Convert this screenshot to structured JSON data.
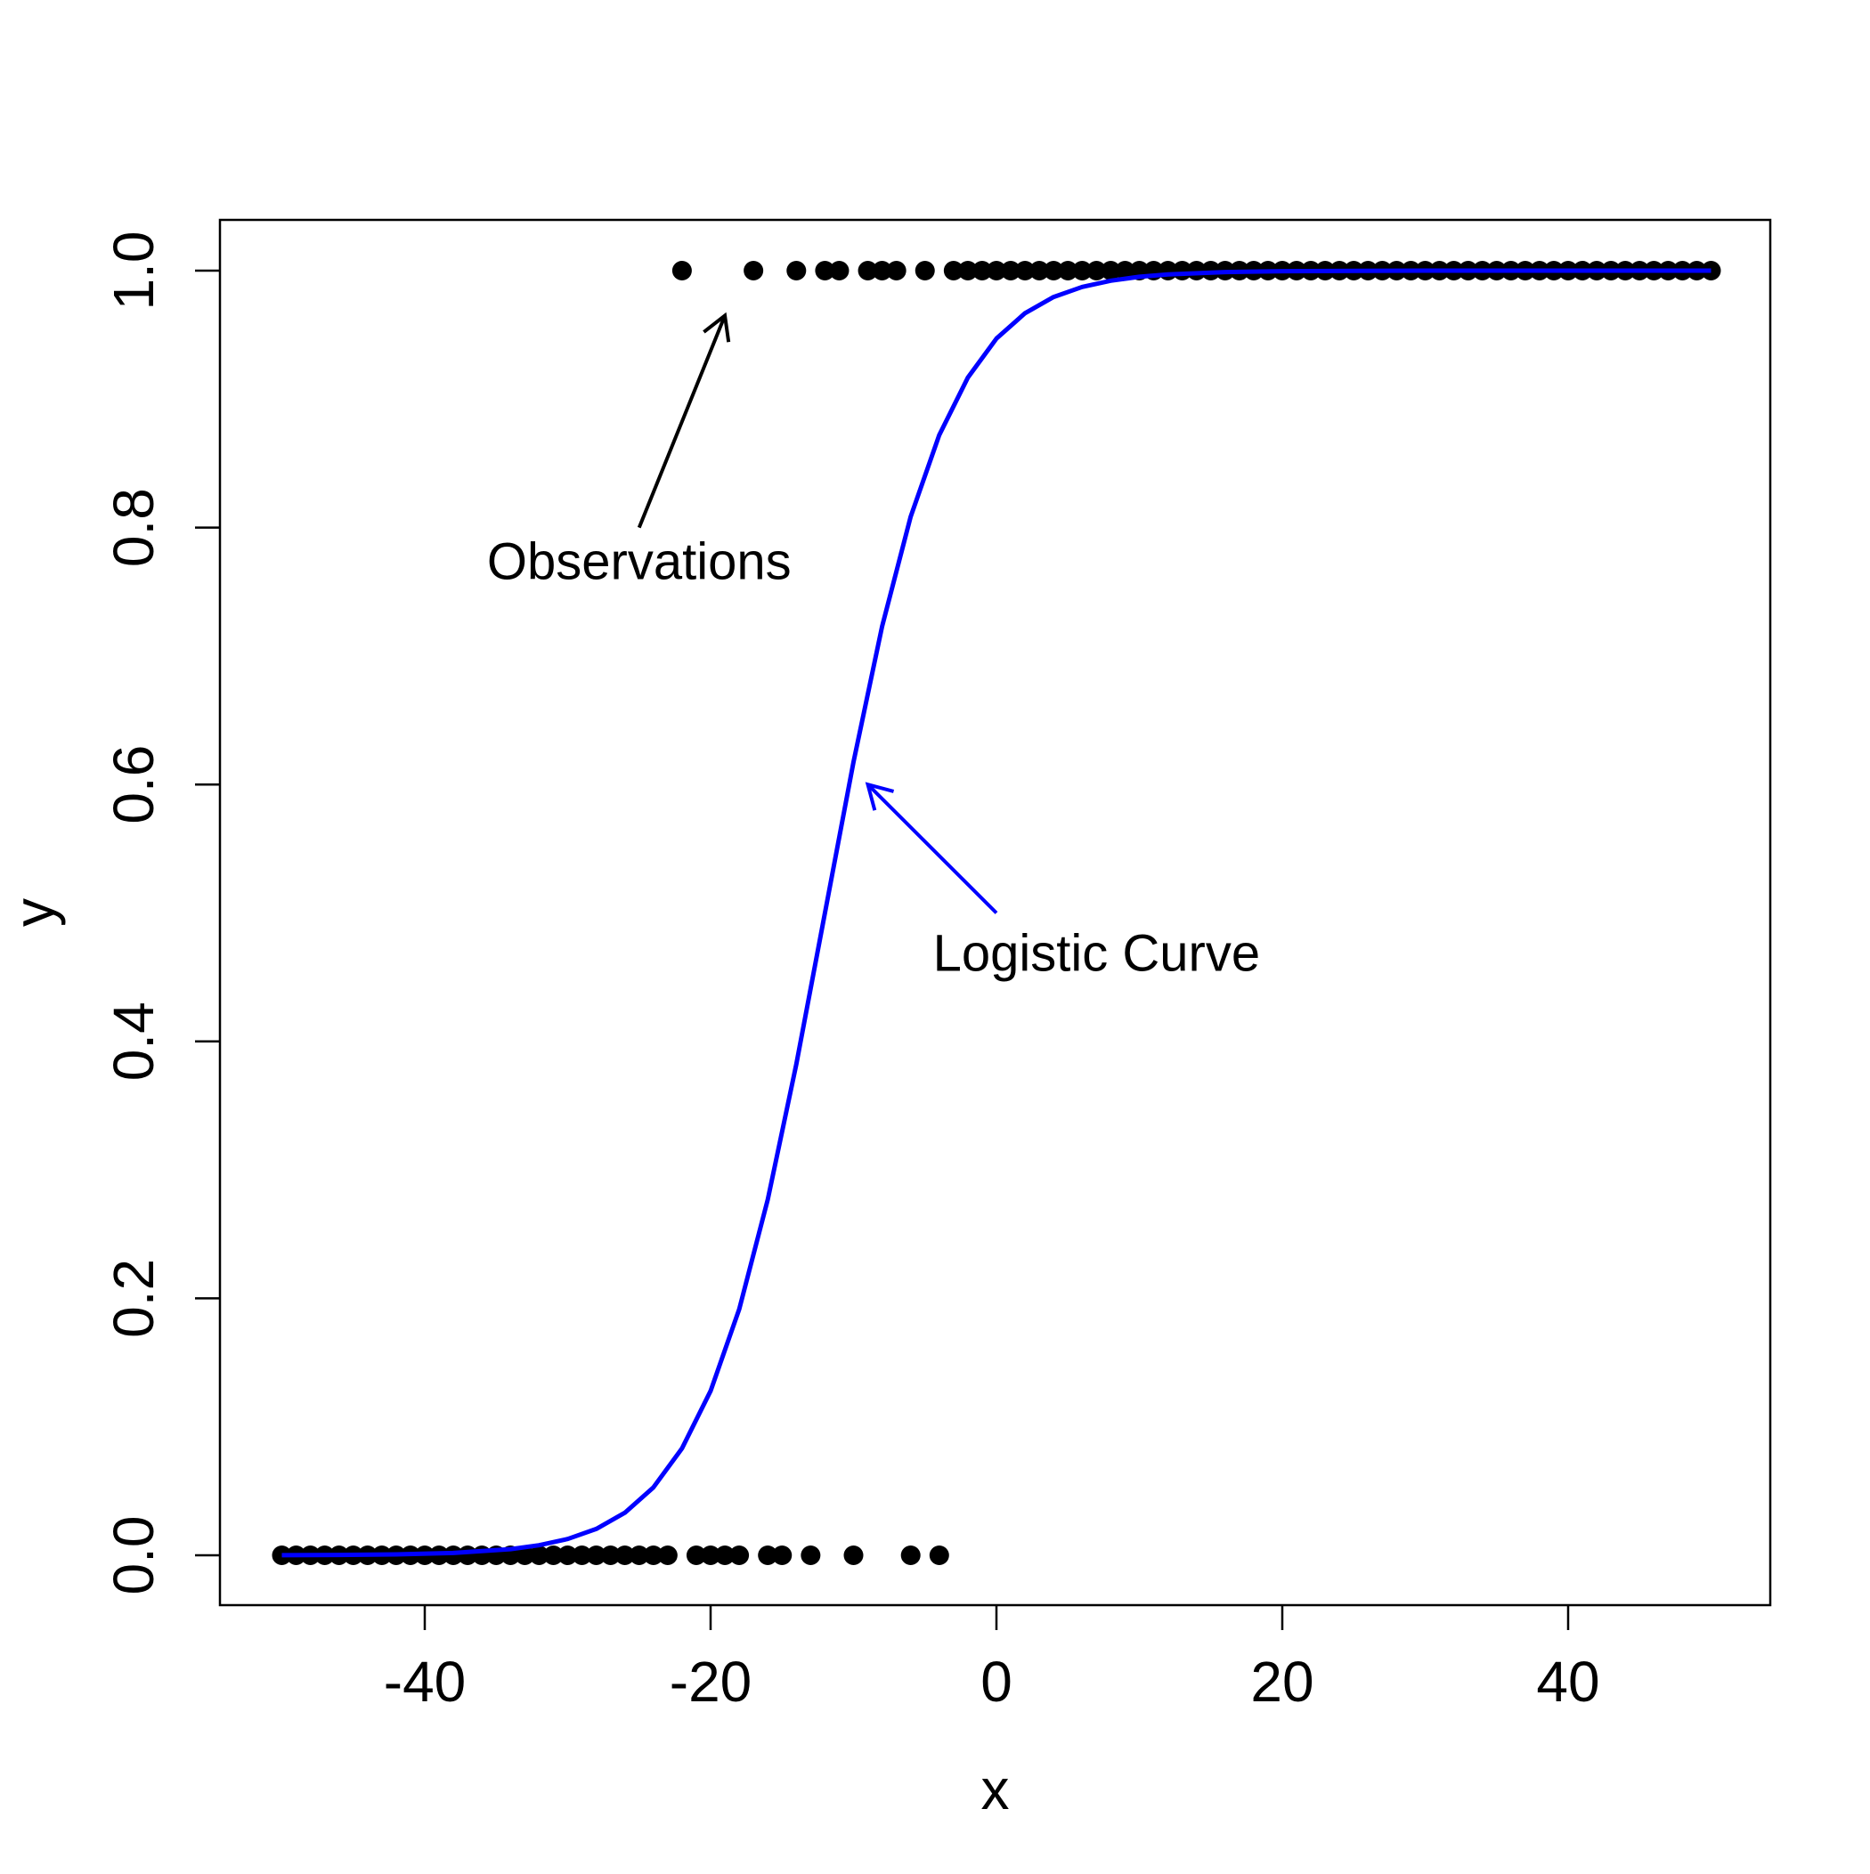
{
  "chart_data": {
    "type": "scatter",
    "title": "",
    "xlabel": "x",
    "ylabel": "y",
    "xlim": [
      -50,
      50
    ],
    "ylim": [
      0,
      1
    ],
    "x_ticks": [
      -40,
      -20,
      0,
      20,
      40
    ],
    "x_tick_labels": [
      "-40",
      "-20",
      "0",
      "20",
      "40"
    ],
    "y_ticks": [
      0,
      0.2,
      0.4,
      0.6,
      0.8,
      1
    ],
    "y_tick_labels": [
      "0.0",
      "0.2",
      "0.4",
      "0.6",
      "0.8",
      "1.0"
    ],
    "grid": false,
    "legend": "none",
    "series": [
      {
        "kind": "points",
        "color": "#000000",
        "y0_x": [
          -50,
          -49,
          -48,
          -47,
          -46,
          -45,
          -44,
          -43,
          -42,
          -41,
          -40,
          -39,
          -38,
          -37,
          -36,
          -35,
          -34,
          -33,
          -32,
          -31,
          -30,
          -29,
          -28,
          -27,
          -26,
          -25,
          -24,
          -23,
          -21,
          -20,
          -19,
          -18,
          -16,
          -15,
          -13,
          -10,
          -6,
          -4
        ],
        "y1_x": [
          -22,
          -17,
          -14,
          -12,
          -11,
          -9,
          -8,
          -7,
          -5,
          -3,
          -2,
          -1,
          0,
          1,
          2,
          3,
          4,
          5,
          6,
          7,
          8,
          9,
          10,
          11,
          12,
          13,
          14,
          15,
          16,
          17,
          18,
          19,
          20,
          21,
          22,
          23,
          24,
          25,
          26,
          27,
          28,
          29,
          30,
          31,
          32,
          33,
          34,
          35,
          36,
          37,
          38,
          39,
          40,
          41,
          42,
          43,
          44,
          45,
          46,
          47,
          48,
          49,
          50
        ]
      },
      {
        "kind": "curve",
        "color": "#0000ff",
        "x": [
          -50,
          -46,
          -42,
          -38,
          -34,
          -32,
          -30,
          -28,
          -26,
          -24,
          -22,
          -20,
          -18,
          -16,
          -14,
          -12,
          -10,
          -8,
          -6,
          -4,
          -2,
          0,
          2,
          4,
          6,
          8,
          10,
          12,
          16,
          20,
          30,
          40,
          50
        ],
        "y": [
          0.0001,
          0.0003,
          0.0007,
          0.0018,
          0.0048,
          0.0078,
          0.0127,
          0.0205,
          0.0331,
          0.0529,
          0.0832,
          0.1279,
          0.1915,
          0.2769,
          0.3824,
          0.5,
          0.6176,
          0.7231,
          0.8085,
          0.8721,
          0.9168,
          0.9471,
          0.9669,
          0.9795,
          0.9873,
          0.9922,
          0.9952,
          0.9971,
          0.9989,
          0.9996,
          1.0,
          1.0,
          1.0
        ]
      }
    ],
    "annotations": [
      {
        "text": "Observations",
        "color": "#000000",
        "x": -25,
        "y": 0.76,
        "arrow_from": [
          -25,
          0.8
        ],
        "arrow_to": [
          -19,
          0.965
        ]
      },
      {
        "text": "Logistic Curve",
        "color": "#0000ff",
        "x": 7,
        "y": 0.455,
        "arrow_from": [
          0,
          0.5
        ],
        "arrow_to": [
          -9,
          0.6
        ]
      }
    ]
  }
}
